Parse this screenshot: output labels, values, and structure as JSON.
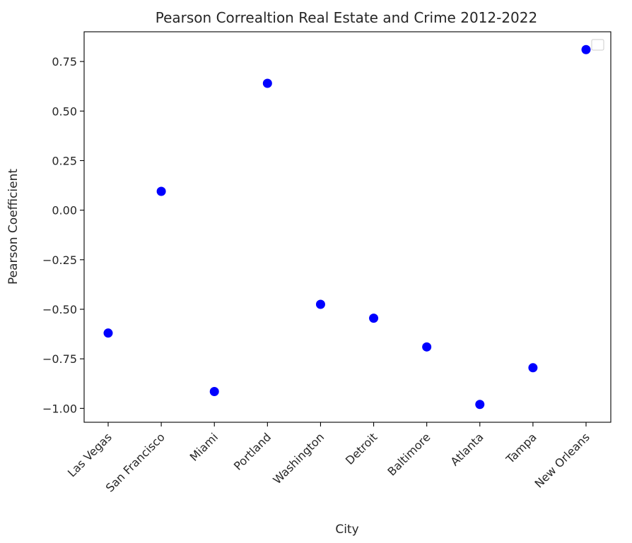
{
  "chart_data": {
    "type": "scatter",
    "title": "Pearson Correaltion Real Estate and Crime 2012-2022",
    "xlabel": "City",
    "ylabel": "Pearson Coefficient",
    "categories": [
      "Las Vegas",
      "San Francisco",
      "Miami",
      "Portland",
      "Washington",
      "Detroit",
      "Baltimore",
      "Atlanta",
      "Tampa",
      "New Orleans"
    ],
    "values": [
      -0.62,
      0.095,
      -0.915,
      0.64,
      -0.475,
      -0.545,
      -0.69,
      -0.98,
      -0.795,
      0.81
    ],
    "ylim": [
      -1.07,
      0.9
    ],
    "yticks": [
      -1.0,
      -0.75,
      -0.5,
      -0.25,
      0.0,
      0.25,
      0.5,
      0.75
    ],
    "ytick_labels": [
      "−1.00",
      "−0.75",
      "−0.50",
      "−0.25",
      "0.00",
      "0.25",
      "0.50",
      "0.75"
    ],
    "marker_color": "#0000ff",
    "grid": false,
    "legend": {
      "placement": "top-right",
      "entries": []
    }
  }
}
